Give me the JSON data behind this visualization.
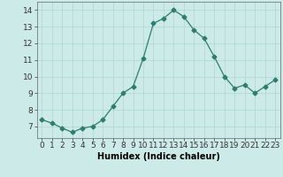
{
  "x": [
    0,
    1,
    2,
    3,
    4,
    5,
    6,
    7,
    8,
    9,
    10,
    11,
    12,
    13,
    14,
    15,
    16,
    17,
    18,
    19,
    20,
    21,
    22,
    23
  ],
  "y": [
    7.4,
    7.2,
    6.9,
    6.65,
    6.9,
    7.0,
    7.4,
    8.2,
    9.0,
    9.4,
    11.1,
    13.2,
    13.5,
    14.0,
    13.6,
    12.8,
    12.3,
    11.2,
    10.0,
    9.3,
    9.5,
    9.0,
    9.4,
    9.8
  ],
  "line_color": "#2e7d6e",
  "marker": "D",
  "marker_size": 2.5,
  "xlabel": "Humidex (Indice chaleur)",
  "xlim": [
    -0.5,
    23.5
  ],
  "ylim": [
    6.3,
    14.5
  ],
  "yticks": [
    7,
    8,
    9,
    10,
    11,
    12,
    13,
    14
  ],
  "xticks": [
    0,
    1,
    2,
    3,
    4,
    5,
    6,
    7,
    8,
    9,
    10,
    11,
    12,
    13,
    14,
    15,
    16,
    17,
    18,
    19,
    20,
    21,
    22,
    23
  ],
  "bg_color": "#cceae7",
  "grid_color": "#b0d5d2",
  "xlabel_fontsize": 7,
  "tick_fontsize": 6.5
}
